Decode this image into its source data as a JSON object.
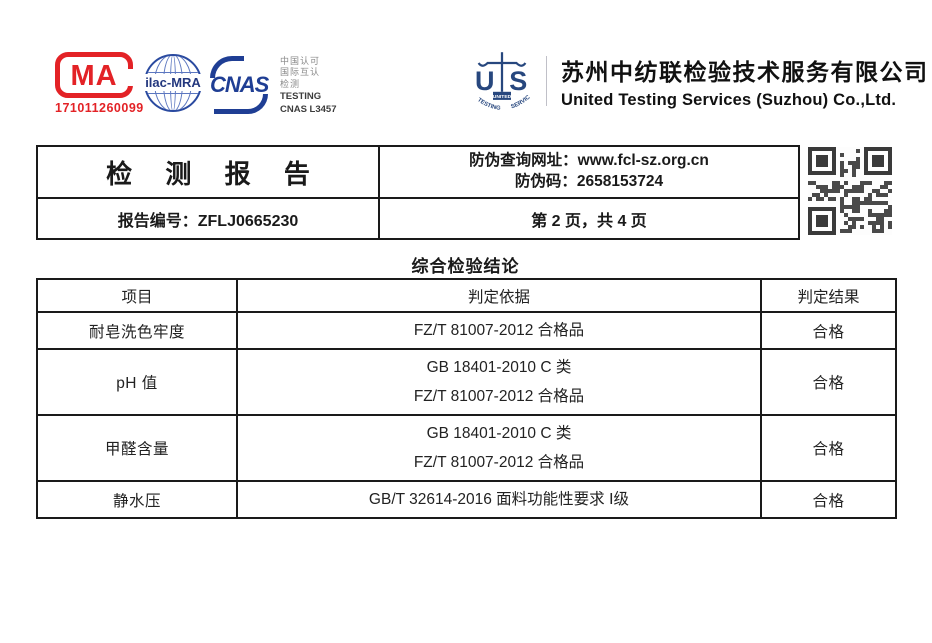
{
  "logos": {
    "cma": {
      "label": "MA",
      "number": "171011260099",
      "color": "#e32226"
    },
    "ilac": {
      "label": "ilac-MRA",
      "color": "#2a4aa0"
    },
    "cnas": {
      "label": "CNAS",
      "side_lines_cn": [
        "中国认可",
        "国际互认",
        "检测"
      ],
      "side_line_en1": "TESTING",
      "side_line_en2": "CNAS L3457",
      "color": "#1f3e94"
    },
    "uts": {
      "letter_left": "U",
      "letter_right": "S",
      "band_label": "UNITED",
      "arc_label": "TESTING SERVICES",
      "color": "#27477e"
    }
  },
  "company": {
    "name_cn": "苏州中纺联检验技术服务有限公司",
    "name_en": "United Testing Services (Suzhou) Co.,Ltd."
  },
  "header_table": {
    "title": "检 测 报 告",
    "report_no_label": "报告编号：",
    "report_no": "ZFLJ0665230",
    "anti_fake_url_label": "防伪查询网址：",
    "anti_fake_url": "www.fcl-sz.org.cn",
    "anti_fake_code_label": "防伪码：",
    "anti_fake_code": "2658153724",
    "page_info": "第 2 页，共 4 页"
  },
  "section": {
    "title": "综合检验结论"
  },
  "result_table": {
    "headers": [
      "项目",
      "判定依据",
      "判定结果"
    ],
    "rows": [
      {
        "item": "耐皂洗色牢度",
        "basis": [
          "FZ/T 81007-2012  合格品"
        ],
        "result": "合格"
      },
      {
        "item": "pH 值",
        "basis": [
          "GB 18401-2010 C 类",
          "FZ/T 81007-2012  合格品"
        ],
        "result": "合格"
      },
      {
        "item": "甲醛含量",
        "basis": [
          "GB 18401-2010 C 类",
          "FZ/T 81007-2012  合格品"
        ],
        "result": "合格"
      },
      {
        "item": "静水压",
        "basis": [
          "GB/T 32614-2016  面料功能性要求  Ⅰ级"
        ],
        "result": "合格"
      }
    ]
  }
}
